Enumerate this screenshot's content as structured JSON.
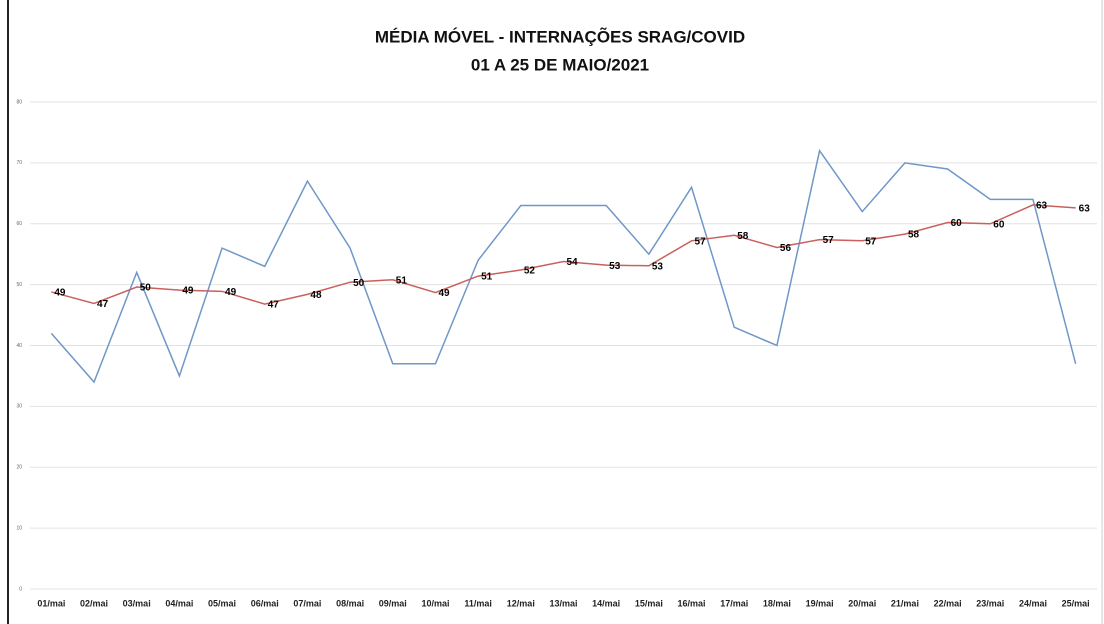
{
  "chart_data": {
    "type": "line",
    "title": "MÉDIA MÓVEL - INTERNAÇÕES SRAG/COVID",
    "subtitle": "01 A 25 DE MAIO/2021",
    "categories": [
      "01/mai",
      "02/mai",
      "03/mai",
      "04/mai",
      "05/mai",
      "06/mai",
      "07/mai",
      "08/mai",
      "09/mai",
      "10/mai",
      "11/mai",
      "12/mai",
      "13/mai",
      "14/mai",
      "15/mai",
      "16/mai",
      "17/mai",
      "18/mai",
      "19/mai",
      "20/mai",
      "21/mai",
      "22/mai",
      "23/mai",
      "24/mai",
      "25/mai"
    ],
    "series": [
      {
        "color": "#6f97c8",
        "values": [
          42,
          34,
          52,
          35,
          56,
          53,
          67,
          56,
          37,
          37,
          54,
          63,
          63,
          63,
          55,
          66,
          43,
          40,
          72,
          62,
          70,
          69,
          64,
          64,
          37
        ]
      },
      {
        "color": "#c9605c",
        "values": [
          48.8,
          46.9,
          49.6,
          49.1,
          48.9,
          46.8,
          48.4,
          50.4,
          50.8,
          48.7,
          51.4,
          52.4,
          53.8,
          53.2,
          53.1,
          57.2,
          58.1,
          56.1,
          57.4,
          57.2,
          58.3,
          60.2,
          60.0,
          63.1,
          62.6
        ],
        "value_labels": [
          "49",
          "47",
          "50",
          "49",
          "49",
          "47",
          "48",
          "50",
          "51",
          "49",
          "51",
          "52",
          "54",
          "53",
          "53",
          "57",
          "58",
          "56",
          "57",
          "57",
          "58",
          "60",
          "60",
          "63",
          "63"
        ]
      }
    ],
    "ylim": [
      0,
      80
    ],
    "yticks": [
      0,
      10,
      20,
      30,
      40,
      50,
      60,
      70,
      80
    ],
    "grid": true
  }
}
